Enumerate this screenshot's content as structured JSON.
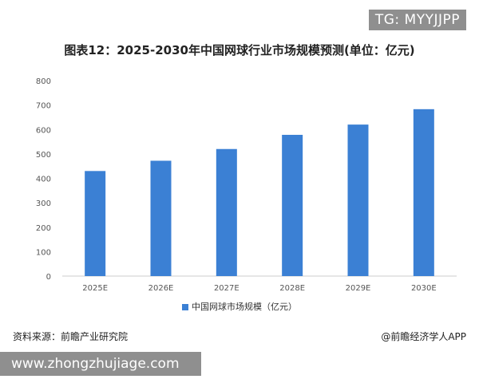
{
  "badge": "TG: MYYJJPP",
  "source": "资料来源：前瞻产业研究院",
  "brand": "@前瞻经济学人APP",
  "watermark_url": "www.zhongzhujiage.com",
  "colors": {
    "bar": "#3b80d4",
    "axis": "#cccccc"
  },
  "chart_data": {
    "type": "bar",
    "title": "图表12：2025-2030年中国网球行业市场规模预测(单位：亿元)",
    "categories": [
      "2025E",
      "2026E",
      "2027E",
      "2028E",
      "2029E",
      "2030E"
    ],
    "series": [
      {
        "name": "中国网球市场规模（亿元）",
        "values": [
          430,
          472,
          520,
          578,
          620,
          683
        ]
      }
    ],
    "y_ticks": [
      0,
      100,
      200,
      300,
      400,
      500,
      600,
      700,
      800
    ],
    "ylim": [
      0,
      800
    ],
    "grid": false,
    "legend": "bottom-center"
  }
}
